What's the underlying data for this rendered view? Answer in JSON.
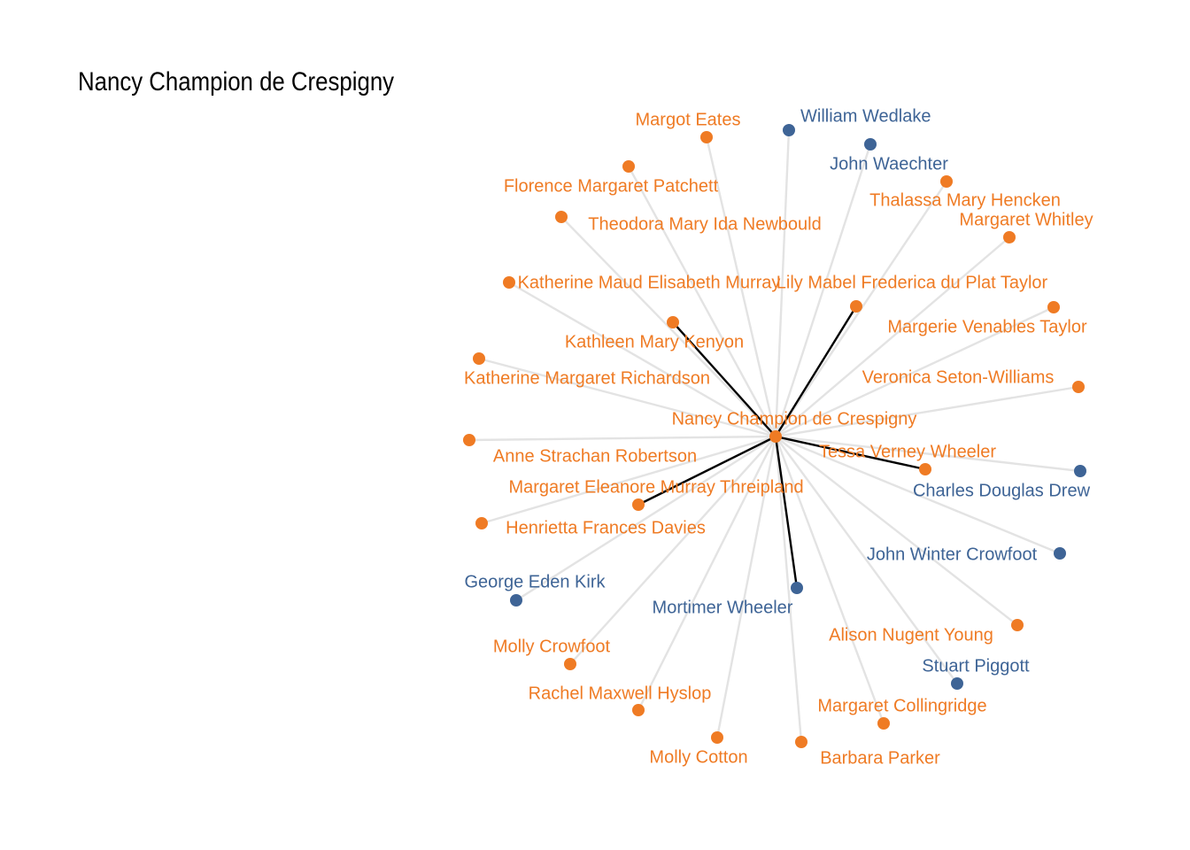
{
  "title": "Nancy Champion de Crespigny",
  "colors": {
    "female": "#ef7b24",
    "male": "#3e6496",
    "edge": "#e3e3e3",
    "highlight": "#000000"
  },
  "center": {
    "id": "ncdc",
    "name": "Nancy Champion de Crespigny",
    "group": "female"
  },
  "nodes": [
    {
      "id": "margot-eates",
      "name": "Margot Eates",
      "group": "female",
      "highlight": false
    },
    {
      "id": "william-wedlake",
      "name": "William Wedlake",
      "group": "male",
      "highlight": false
    },
    {
      "id": "john-waechter",
      "name": "John Waechter",
      "group": "male",
      "highlight": false
    },
    {
      "id": "florence-patchett",
      "name": "Florence Margaret Patchett",
      "group": "female",
      "highlight": false
    },
    {
      "id": "thalassa-hencken",
      "name": "Thalassa Mary Hencken",
      "group": "female",
      "highlight": false
    },
    {
      "id": "margaret-whitley",
      "name": "Margaret Whitley",
      "group": "female",
      "highlight": false
    },
    {
      "id": "theodora-newbould",
      "name": "Theodora Mary Ida Newbould",
      "group": "female",
      "highlight": false
    },
    {
      "id": "katherine-murray",
      "name": "Katherine Maud Elisabeth Murray",
      "group": "female",
      "highlight": false
    },
    {
      "id": "lily-taylor",
      "name": "Lily Mabel Frederica du Plat Taylor",
      "group": "female",
      "highlight": true
    },
    {
      "id": "kathleen-kenyon",
      "name": "Kathleen Mary Kenyon",
      "group": "female",
      "highlight": true
    },
    {
      "id": "margerie-taylor",
      "name": "Margerie Venables Taylor",
      "group": "female",
      "highlight": false
    },
    {
      "id": "katherine-richardson",
      "name": "Katherine Margaret Richardson",
      "group": "female",
      "highlight": false
    },
    {
      "id": "veronica-seton-williams",
      "name": "Veronica Seton-Williams",
      "group": "female",
      "highlight": false
    },
    {
      "id": "anne-robertson",
      "name": "Anne Strachan Robertson",
      "group": "female",
      "highlight": false
    },
    {
      "id": "tessa-wheeler",
      "name": "Tessa Verney Wheeler",
      "group": "female",
      "highlight": true
    },
    {
      "id": "charles-drew",
      "name": "Charles Douglas Drew",
      "group": "male",
      "highlight": false
    },
    {
      "id": "margaret-threipland",
      "name": "Margaret Eleanore Murray Threipland",
      "group": "female",
      "highlight": true
    },
    {
      "id": "henrietta-davies",
      "name": "Henrietta Frances Davies",
      "group": "female",
      "highlight": false
    },
    {
      "id": "john-crowfoot",
      "name": "John Winter Crowfoot",
      "group": "male",
      "highlight": false
    },
    {
      "id": "george-kirk",
      "name": "George Eden Kirk",
      "group": "male",
      "highlight": false
    },
    {
      "id": "mortimer-wheeler",
      "name": "Mortimer Wheeler",
      "group": "male",
      "highlight": true
    },
    {
      "id": "alison-young",
      "name": "Alison Nugent Young",
      "group": "female",
      "highlight": false
    },
    {
      "id": "molly-crowfoot",
      "name": "Molly Crowfoot",
      "group": "female",
      "highlight": false
    },
    {
      "id": "stuart-piggott",
      "name": "Stuart Piggott",
      "group": "male",
      "highlight": false
    },
    {
      "id": "rachel-hyslop",
      "name": "Rachel Maxwell Hyslop",
      "group": "female",
      "highlight": false
    },
    {
      "id": "margaret-collingridge",
      "name": "Margaret Collingridge",
      "group": "female",
      "highlight": false
    },
    {
      "id": "molly-cotton",
      "name": "Molly Cotton",
      "group": "female",
      "highlight": false
    },
    {
      "id": "barbara-parker",
      "name": "Barbara Parker",
      "group": "female",
      "highlight": false
    }
  ]
}
